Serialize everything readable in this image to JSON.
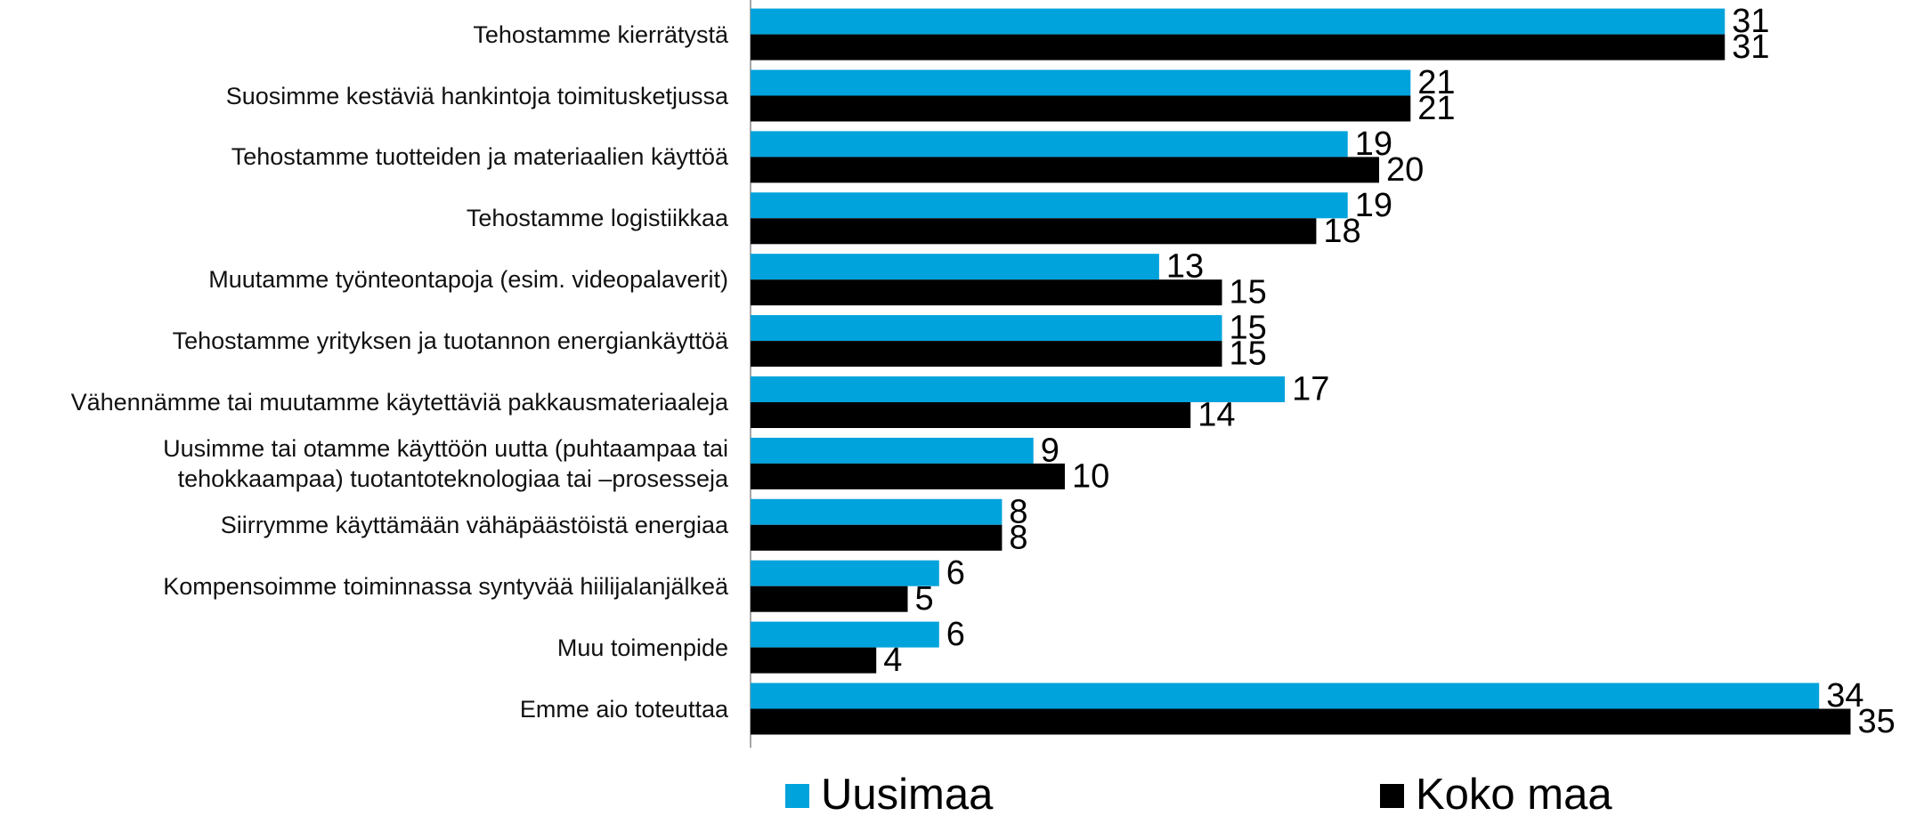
{
  "chart_data": {
    "type": "bar",
    "orientation": "horizontal",
    "categories": [
      "Tehostamme kierrätystä",
      "Suosimme kestäviä hankintoja toimitusketjussa",
      "Tehostamme tuotteiden ja materiaalien käyttöä",
      "Tehostamme logistiikkaa",
      "Muutamme työnteontapoja (esim. videopalaverit)",
      "Tehostamme yrityksen ja tuotannon energiankäyttöä",
      "Vähennämme tai muutamme käytettäviä pakkausmateriaaleja",
      "Uusimme tai otamme käyttöön uutta (puhtaampaa tai\ntehokkaampaa) tuotantoteknologiaa tai –prosesseja",
      "Siirrymme käyttämään vähäpäästöistä energiaa",
      "Kompensoimme toiminnassa syntyvää hiilijalanjälkeä",
      "Muu toimenpide",
      "Emme aio toteuttaa"
    ],
    "series": [
      {
        "name": "Uusimaa",
        "color": "#00a3dc",
        "values": [
          31,
          21,
          19,
          19,
          13,
          15,
          17,
          9,
          8,
          6,
          6,
          34
        ]
      },
      {
        "name": "Koko maa",
        "color": "#000000",
        "values": [
          31,
          21,
          20,
          18,
          15,
          15,
          14,
          10,
          8,
          5,
          4,
          35
        ]
      }
    ],
    "legend": "bottom"
  }
}
